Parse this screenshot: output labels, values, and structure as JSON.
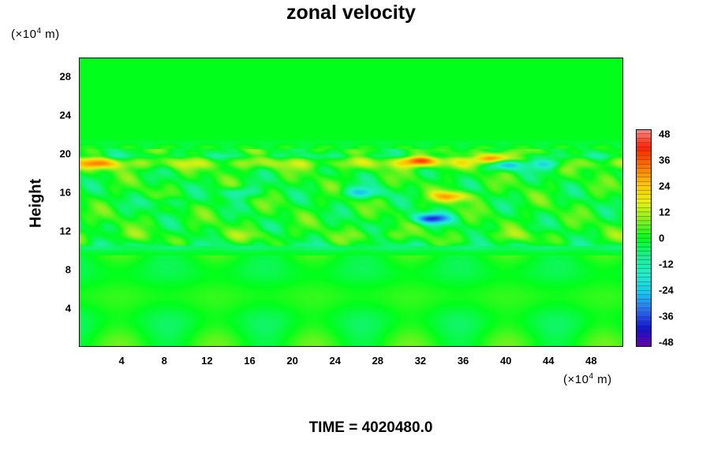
{
  "chart_data": {
    "type": "heatmap",
    "title": "zonal velocity",
    "ylabel": "Height",
    "x_unit": "(×10⁴ m)",
    "y_unit": "(×10⁴ m)",
    "xlim": [
      0,
      51
    ],
    "ylim": [
      0,
      30
    ],
    "x_ticks": [
      "4",
      "8",
      "12",
      "16",
      "20",
      "24",
      "28",
      "32",
      "36",
      "40",
      "44",
      "48"
    ],
    "y_ticks": [
      "4",
      "8",
      "12",
      "16",
      "20",
      "24",
      "28"
    ],
    "colorbar": {
      "range": [
        -50,
        50
      ],
      "ticks": [
        "48",
        "36",
        "24",
        "12",
        "0",
        "-12",
        "-24",
        "-36",
        "-48"
      ],
      "colors_low_to_high": [
        "#6a00a8",
        "#1010d0",
        "#2a6cf0",
        "#18c8f0",
        "#1ff0c8",
        "#18f090",
        "#00ff1a",
        "#88f020",
        "#e8f010",
        "#ffc000",
        "#ff7000",
        "#ff2000",
        "#ff8a8a"
      ]
    },
    "field_summary": {
      "background_value": 0,
      "features": [
        {
          "x": 40,
          "y": 18.9,
          "value": -35
        },
        {
          "x": 44,
          "y": 19,
          "value": -28
        },
        {
          "x": 33,
          "y": 13.3,
          "value": -36
        },
        {
          "x": 26.5,
          "y": 16,
          "value": -22
        },
        {
          "x": 32,
          "y": 19.3,
          "value": 34
        },
        {
          "x": 35,
          "y": 15.6,
          "value": 26
        },
        {
          "x": 39,
          "y": 19.6,
          "value": 40
        },
        {
          "x": 2,
          "y": 19,
          "value": 20
        },
        {
          "x": 15,
          "y": 16,
          "value": -15
        },
        {
          "x": 8,
          "y": 15,
          "value": -10
        }
      ]
    }
  },
  "footer": {
    "time_label": "TIME = 4020480.0"
  }
}
